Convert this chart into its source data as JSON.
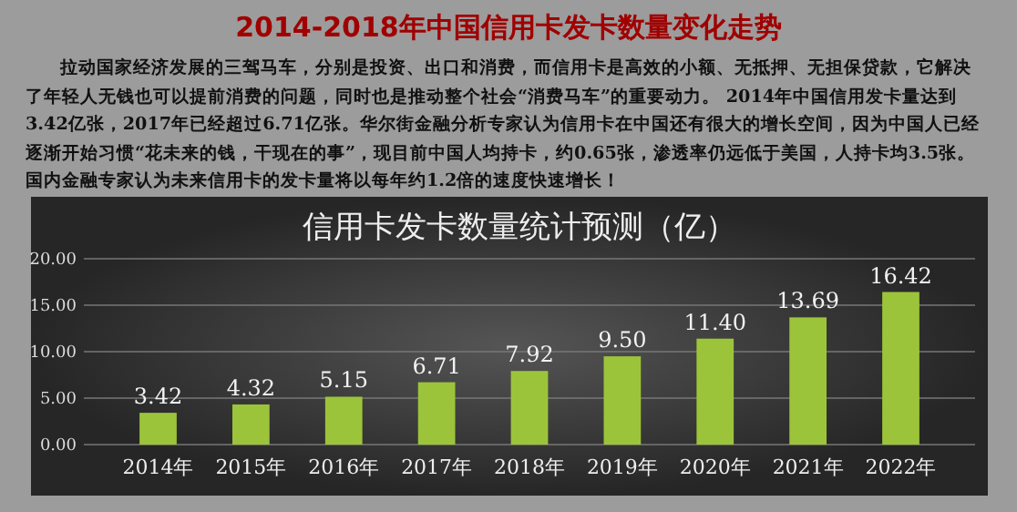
{
  "chart_data": {
    "type": "bar",
    "title": "2014-2018年中国信用卡发卡数量变化走势",
    "subtitle": "信用卡发卡数量统计预测（亿）",
    "annotations": [
      "拉动国家经济发展的三驾马车，分别是投资、出口和消费，而信用卡是高效的小额、无抵押、无担保贷款，它解决了年轻人无钱也可以提前消费的问题，同时也是推动整个社会“消费马车”的重要动力。 2014年中国信用发卡量达到3.42亿张，2017年已经超过6.71亿张。华尔街金融分析专家认为信用卡在中国还有很大的增长空间，因为中国人已经逐渐开始习惯“花未来的钱，干现在的事”，现目前中国人均持卡，约0.65张，渗透率仍远低于美国，人持卡均3.5张。国内金融专家认为未来信用卡的发卡量将以每年约1.2倍的速度快速增长！"
    ],
    "categories": [
      "2014年",
      "2015年",
      "2016年",
      "2017年",
      "2018年",
      "2019年",
      "2020年",
      "2021年",
      "2022年"
    ],
    "values": [
      3.42,
      4.32,
      5.15,
      6.71,
      7.92,
      9.5,
      11.4,
      13.69,
      16.42
    ],
    "value_labels": [
      "3.42",
      "4.32",
      "5.15",
      "6.71",
      "7.92",
      "9.50",
      "11.40",
      "13.69",
      "16.42"
    ],
    "color": "#9cc43a",
    "ylim": [
      0,
      20
    ],
    "yticks": [
      {
        "value": 0,
        "label": "0.00"
      },
      {
        "value": 5,
        "label": "5.00"
      },
      {
        "value": 10,
        "label": "10.00"
      },
      {
        "value": 15,
        "label": "15.00"
      },
      {
        "value": 20,
        "label": "20.00"
      }
    ],
    "grid": "y"
  }
}
